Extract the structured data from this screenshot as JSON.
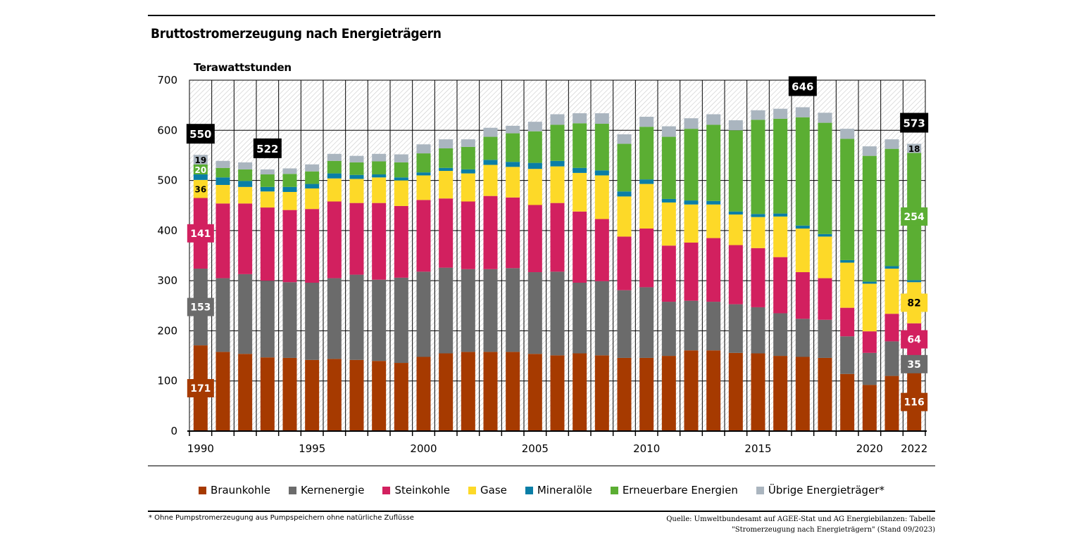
{
  "title": "Bruttostromerzeugung nach Energieträgern",
  "footnote": "* Ohne Pumpstromerzeugung aus Pumpspeichern ohne natürliche Zuflüsse",
  "source": [
    "Quelle: Umweltbundesamt auf AGEE-Stat und AG Energiebilanzen: Tabelle",
    "\"Stromerzeugung nach Energieträgern\" (Stand 09/2023)"
  ],
  "chart_data": {
    "type": "bar",
    "stacked": true,
    "title": "Bruttostromerzeugung nach Energieträgern",
    "ylabel": "Terawattstunden",
    "ylim": [
      0,
      700
    ],
    "yticks": [
      0,
      100,
      200,
      300,
      400,
      500,
      600,
      700
    ],
    "grid": true,
    "legend_position": "bottom",
    "categories": [
      1990,
      1991,
      1992,
      1993,
      1994,
      1995,
      1996,
      1997,
      1998,
      1999,
      2000,
      2001,
      2002,
      2003,
      2004,
      2005,
      2006,
      2007,
      2008,
      2009,
      2010,
      2011,
      2012,
      2013,
      2014,
      2015,
      2016,
      2017,
      2018,
      2019,
      2020,
      2021,
      2022
    ],
    "xtick_labels": [
      "1990",
      "1995",
      "2000",
      "2005",
      "2010",
      "2015",
      "2020",
      "2022"
    ],
    "series": [
      {
        "name": "Braunkohle",
        "color": "#a63a00",
        "values": [
          171,
          158,
          154,
          147,
          146,
          142,
          144,
          142,
          140,
          136,
          148,
          155,
          158,
          158,
          158,
          154,
          151,
          155,
          151,
          146,
          146,
          150,
          161,
          161,
          156,
          155,
          150,
          148,
          146,
          114,
          92,
          110,
          116
        ]
      },
      {
        "name": "Kernenergie",
        "color": "#6b6b6b",
        "values": [
          153,
          147,
          159,
          153,
          151,
          154,
          161,
          170,
          162,
          170,
          170,
          171,
          165,
          165,
          167,
          163,
          167,
          141,
          148,
          135,
          141,
          108,
          99,
          97,
          97,
          92,
          85,
          76,
          76,
          75,
          64,
          69,
          35
        ]
      },
      {
        "name": "Steinkohle",
        "color": "#d2205f",
        "values": [
          141,
          149,
          141,
          146,
          144,
          147,
          153,
          143,
          153,
          143,
          143,
          138,
          135,
          146,
          141,
          134,
          137,
          142,
          124,
          107,
          117,
          112,
          116,
          127,
          118,
          118,
          112,
          93,
          83,
          57,
          43,
          55,
          64
        ]
      },
      {
        "name": "Gase",
        "color": "#fdd928",
        "values": [
          36,
          37,
          33,
          32,
          36,
          41,
          46,
          48,
          51,
          51,
          49,
          55,
          56,
          62,
          61,
          72,
          73,
          77,
          87,
          80,
          89,
          86,
          76,
          67,
          61,
          62,
          81,
          87,
          83,
          90,
          95,
          90,
          82
        ]
      },
      {
        "name": "Mineralöle",
        "color": "#0a7ea6",
        "values": [
          11,
          15,
          12,
          9,
          10,
          9,
          10,
          8,
          6,
          6,
          6,
          6,
          8,
          10,
          10,
          12,
          11,
          10,
          10,
          10,
          9,
          7,
          8,
          7,
          6,
          6,
          6,
          6,
          5,
          5,
          4,
          5,
          4
        ]
      },
      {
        "name": "Erneuerbare Energien",
        "color": "#5bae33",
        "values": [
          20,
          19,
          23,
          25,
          26,
          25,
          25,
          25,
          26,
          30,
          38,
          39,
          45,
          46,
          57,
          63,
          72,
          89,
          93,
          95,
          105,
          124,
          143,
          152,
          162,
          188,
          189,
          216,
          222,
          242,
          251,
          234,
          254
        ]
      },
      {
        "name": "Übrige Energieträger*",
        "color": "#aab5bf",
        "values": [
          19,
          14,
          14,
          10,
          11,
          14,
          14,
          13,
          15,
          16,
          18,
          18,
          15,
          18,
          15,
          19,
          21,
          20,
          21,
          19,
          20,
          21,
          21,
          21,
          20,
          19,
          20,
          20,
          20,
          20,
          19,
          19,
          18
        ]
      }
    ],
    "total_labels": [
      {
        "year": 1990,
        "value": "550"
      },
      {
        "year": 1993,
        "value": "522"
      },
      {
        "year": 2017,
        "value": "646"
      },
      {
        "year": 2022,
        "value": "573"
      }
    ],
    "segment_labels": [
      {
        "year": 1990,
        "series": 0,
        "value": "171"
      },
      {
        "year": 1990,
        "series": 1,
        "value": "153"
      },
      {
        "year": 1990,
        "series": 2,
        "value": "141"
      },
      {
        "year": 1990,
        "series": 3,
        "value": "36"
      },
      {
        "year": 1990,
        "series": 5,
        "value": "20"
      },
      {
        "year": 1990,
        "series": 6,
        "value": "19"
      },
      {
        "year": 2022,
        "series": 0,
        "value": "116"
      },
      {
        "year": 2022,
        "series": 1,
        "value": "35"
      },
      {
        "year": 2022,
        "series": 2,
        "value": "64"
      },
      {
        "year": 2022,
        "series": 3,
        "value": "82"
      },
      {
        "year": 2022,
        "series": 5,
        "value": "254"
      },
      {
        "year": 2022,
        "series": 6,
        "value": "18"
      }
    ]
  }
}
